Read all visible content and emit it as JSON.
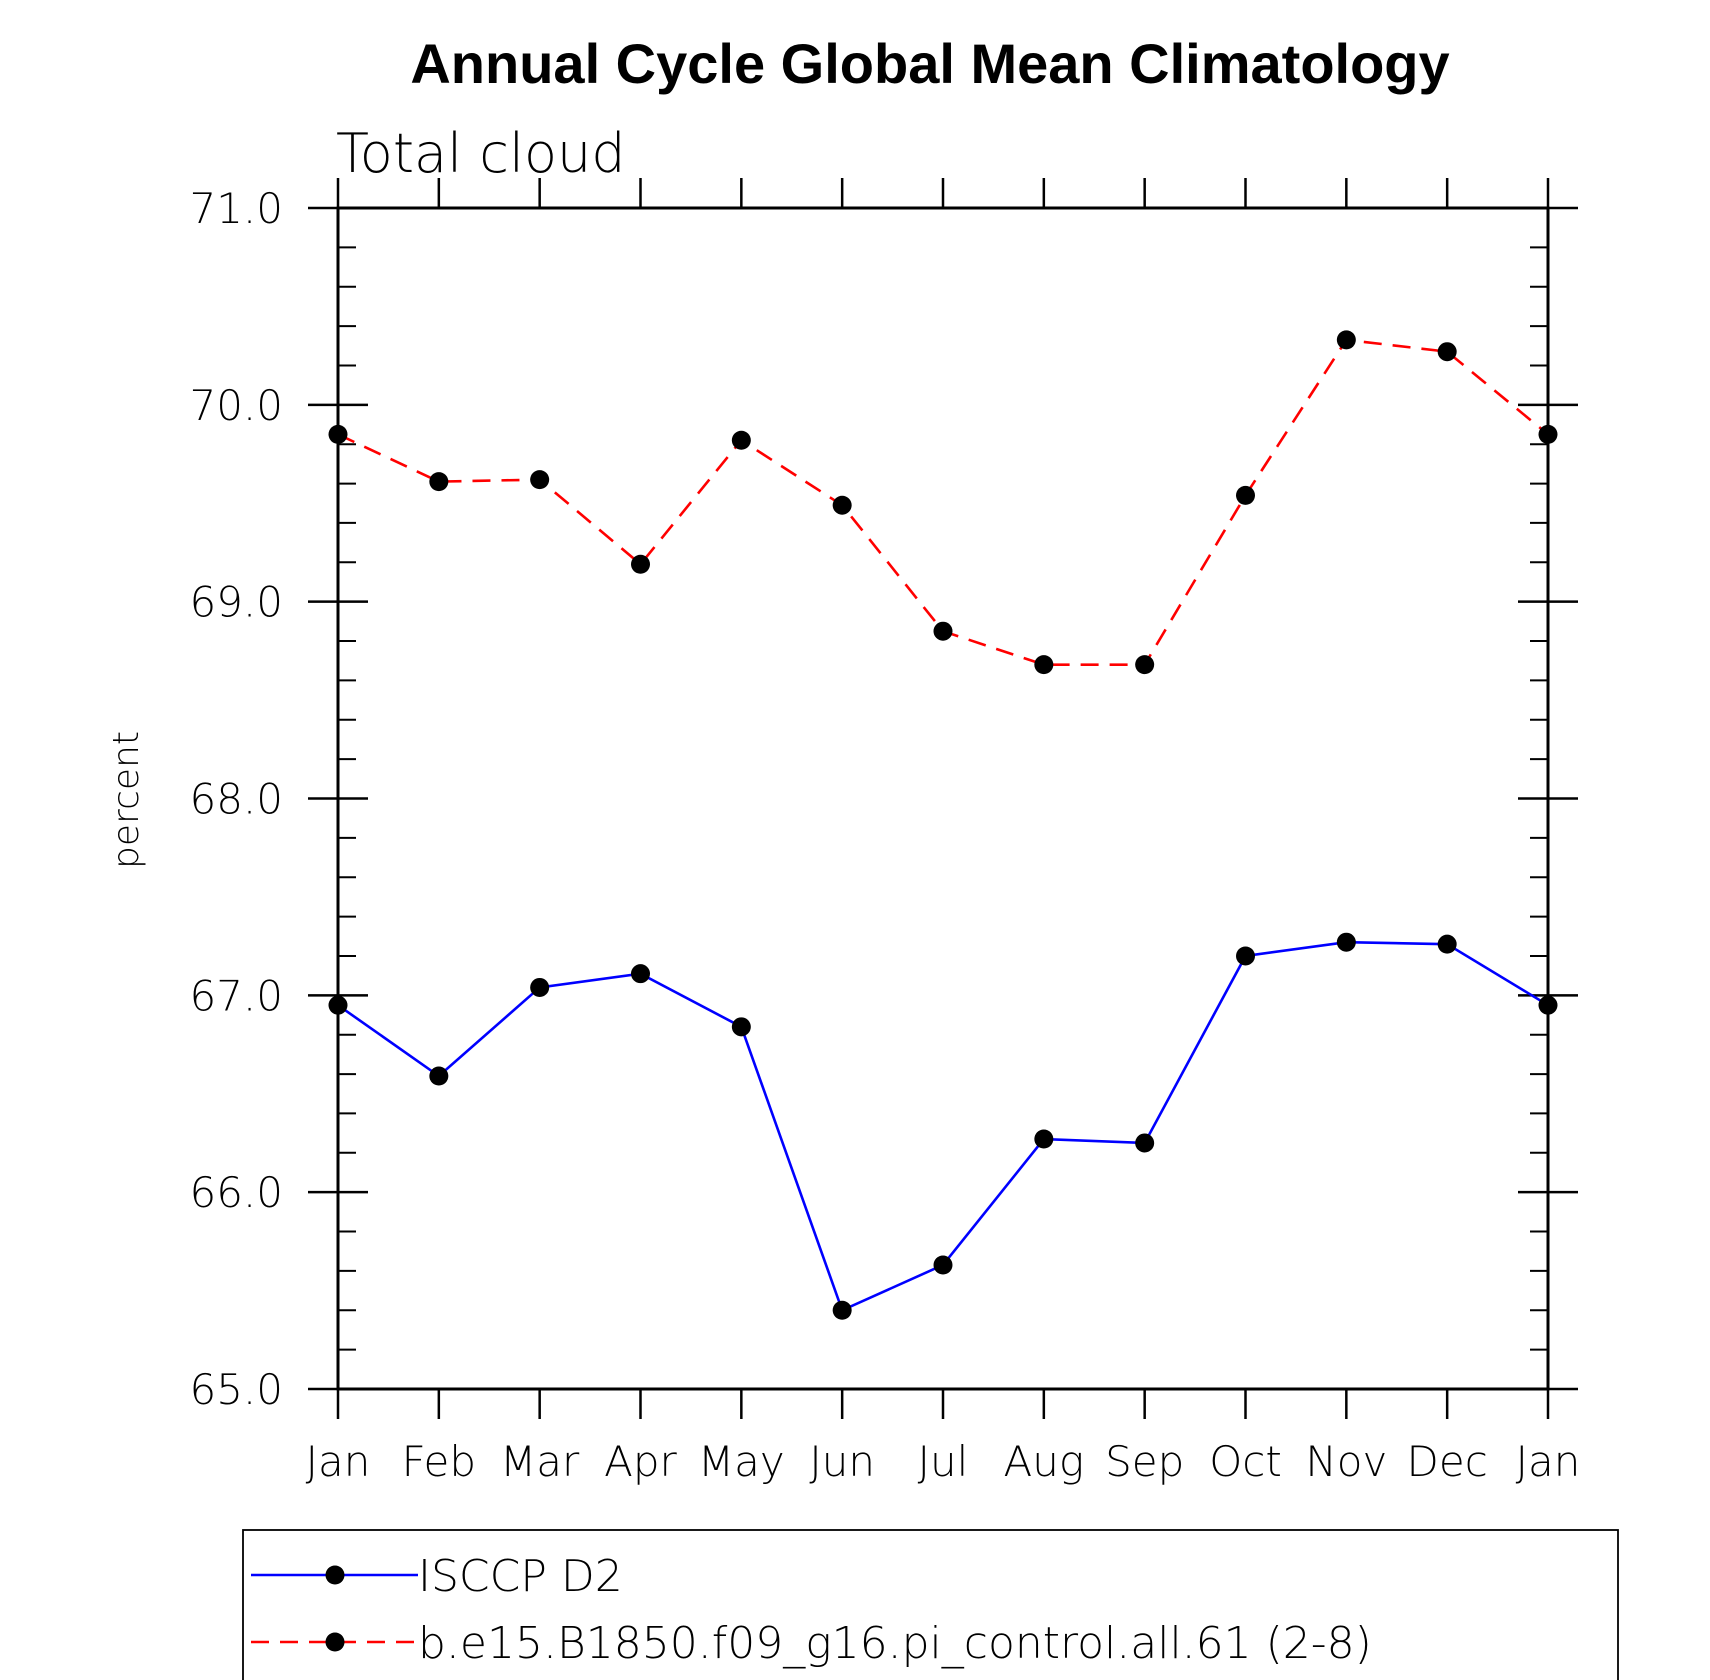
{
  "chart_data": {
    "type": "line",
    "title": "Annual Cycle Global Mean Climatology",
    "subtitle": "Total cloud",
    "xlabel": "",
    "ylabel": "percent",
    "categories": [
      "Jan",
      "Feb",
      "Mar",
      "Apr",
      "May",
      "Jun",
      "Jul",
      "Aug",
      "Sep",
      "Oct",
      "Nov",
      "Dec",
      "Jan"
    ],
    "ylim": [
      65.0,
      71.0
    ],
    "yticks": [
      "65.0",
      "66.0",
      "67.0",
      "68.0",
      "69.0",
      "70.0",
      "71.0"
    ],
    "grid": false,
    "legend_position": "bottom",
    "series": [
      {
        "name": "ISCCP D2",
        "color": "#0000ff",
        "line_style": "solid",
        "marker": "filled-circle",
        "values": [
          66.95,
          66.59,
          67.04,
          67.11,
          66.84,
          65.4,
          65.63,
          66.27,
          66.25,
          67.2,
          67.27,
          67.26,
          66.95
        ]
      },
      {
        "name": "b.e15.B1850.f09_g16.pi_control.all.61 (2-8)",
        "color": "#ff0000",
        "line_style": "dashed",
        "marker": "filled-circle",
        "values": [
          69.85,
          69.61,
          69.62,
          69.19,
          69.82,
          69.49,
          68.85,
          68.68,
          68.68,
          69.54,
          70.33,
          70.27,
          69.85
        ]
      }
    ]
  }
}
